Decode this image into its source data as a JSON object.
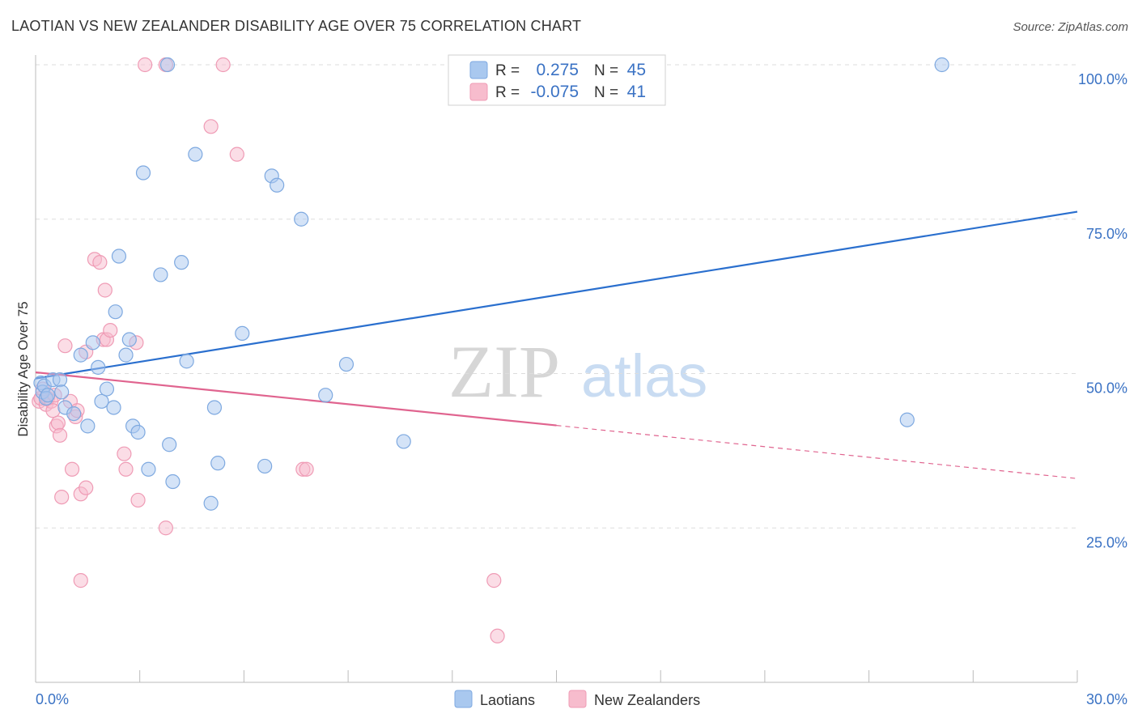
{
  "title": "LAOTIAN VS NEW ZEALANDER DISABILITY AGE OVER 75 CORRELATION CHART",
  "source": "Source: ZipAtlas.com",
  "watermark": {
    "part1": "ZIP",
    "part2": "atlas"
  },
  "colors": {
    "blue_fill": "#a9c8ef",
    "blue_stroke": "#7ea9e0",
    "blue_line": "#2a6fce",
    "pink_fill": "#f7bccd",
    "pink_stroke": "#ef9bb5",
    "pink_line": "#e0648f",
    "axis_label": "#3a72c4",
    "grid": "#dddddd"
  },
  "legend": {
    "row1": {
      "r_label": "R =",
      "r_value": "0.275",
      "n_label": "N =",
      "n_value": "45"
    },
    "row2": {
      "r_label": "R =",
      "r_value": "-0.075",
      "n_label": "N =",
      "n_value": "41"
    }
  },
  "bottom_legend": {
    "series1": "Laotians",
    "series2": "New Zealanders"
  },
  "chart_data": {
    "type": "scatter",
    "title": "LAOTIAN VS NEW ZEALANDER DISABILITY AGE OVER 75 CORRELATION CHART",
    "xlabel": "",
    "ylabel": "Disability Age Over 75",
    "xlim": [
      0,
      30
    ],
    "ylim": [
      0,
      100
    ],
    "x_tick_labels": [
      "0.0%",
      "30.0%"
    ],
    "y_tick_labels": [
      "25.0%",
      "50.0%",
      "75.0%",
      "100.0%"
    ],
    "y_tick_values": [
      25,
      50,
      75,
      100
    ],
    "series": [
      {
        "name": "Laotians",
        "r": 0.275,
        "n": 45,
        "trend": {
          "x": [
            0,
            30
          ],
          "y": [
            49.2,
            76.2
          ],
          "dashed_from": null
        },
        "points": [
          [
            0.15,
            48.5
          ],
          [
            0.2,
            47.0
          ],
          [
            0.25,
            48.0
          ],
          [
            0.3,
            46.0
          ],
          [
            0.35,
            46.5
          ],
          [
            0.5,
            49.0
          ],
          [
            0.7,
            49.0
          ],
          [
            0.75,
            47.0
          ],
          [
            0.85,
            44.5
          ],
          [
            1.1,
            43.5
          ],
          [
            1.3,
            53.0
          ],
          [
            1.5,
            41.5
          ],
          [
            1.65,
            55.0
          ],
          [
            1.8,
            51.0
          ],
          [
            1.9,
            45.5
          ],
          [
            2.05,
            47.5
          ],
          [
            2.25,
            44.5
          ],
          [
            2.3,
            60.0
          ],
          [
            2.4,
            69.0
          ],
          [
            2.6,
            53.0
          ],
          [
            2.7,
            55.5
          ],
          [
            2.8,
            41.5
          ],
          [
            2.95,
            40.5
          ],
          [
            3.1,
            82.5
          ],
          [
            3.25,
            34.5
          ],
          [
            3.6,
            66.0
          ],
          [
            3.8,
            100
          ],
          [
            3.85,
            38.5
          ],
          [
            3.95,
            32.5
          ],
          [
            4.2,
            68.0
          ],
          [
            4.35,
            52.0
          ],
          [
            4.6,
            85.5
          ],
          [
            5.05,
            29.0
          ],
          [
            5.15,
            44.5
          ],
          [
            5.25,
            35.5
          ],
          [
            5.95,
            56.5
          ],
          [
            6.6,
            35.0
          ],
          [
            6.8,
            82.0
          ],
          [
            6.95,
            80.5
          ],
          [
            7.65,
            75.0
          ],
          [
            8.35,
            46.5
          ],
          [
            8.95,
            51.5
          ],
          [
            10.6,
            39.0
          ],
          [
            25.1,
            42.5
          ],
          [
            26.1,
            100
          ]
        ]
      },
      {
        "name": "New Zealanders",
        "r": -0.075,
        "n": 41,
        "trend": {
          "x": [
            0,
            30
          ],
          "y": [
            50.2,
            33.0
          ],
          "dashed_from": 15.0
        },
        "points": [
          [
            0.1,
            45.5
          ],
          [
            0.15,
            46.0
          ],
          [
            0.2,
            47.5
          ],
          [
            0.3,
            45.0
          ],
          [
            0.35,
            46.0
          ],
          [
            0.45,
            45.5
          ],
          [
            0.5,
            44.0
          ],
          [
            0.55,
            46.5
          ],
          [
            0.6,
            41.5
          ],
          [
            0.65,
            42.0
          ],
          [
            0.7,
            40.0
          ],
          [
            0.75,
            30.0
          ],
          [
            0.85,
            54.5
          ],
          [
            1.0,
            45.5
          ],
          [
            1.05,
            34.5
          ],
          [
            1.15,
            43.0
          ],
          [
            1.2,
            44.0
          ],
          [
            1.3,
            30.5
          ],
          [
            1.3,
            16.5
          ],
          [
            1.45,
            31.5
          ],
          [
            1.45,
            53.5
          ],
          [
            1.7,
            68.5
          ],
          [
            1.85,
            68.0
          ],
          [
            1.95,
            55.5
          ],
          [
            2.0,
            63.5
          ],
          [
            2.05,
            55.5
          ],
          [
            2.15,
            57.0
          ],
          [
            2.55,
            37.0
          ],
          [
            2.6,
            34.5
          ],
          [
            2.9,
            55.0
          ],
          [
            2.95,
            29.5
          ],
          [
            3.15,
            100
          ],
          [
            3.75,
            100
          ],
          [
            3.75,
            25.0
          ],
          [
            5.05,
            90.0
          ],
          [
            5.4,
            100
          ],
          [
            5.8,
            85.5
          ],
          [
            7.7,
            34.5
          ],
          [
            7.8,
            34.5
          ],
          [
            13.2,
            16.5
          ],
          [
            13.3,
            7.5
          ]
        ]
      }
    ]
  }
}
